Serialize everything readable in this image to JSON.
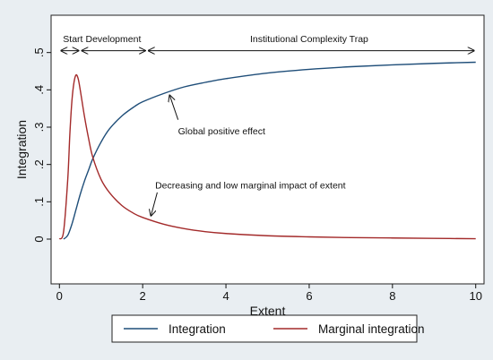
{
  "chart_data": {
    "type": "line",
    "xlabel": "Extent",
    "ylabel": "Integration",
    "xlim": [
      -0.2,
      10.2
    ],
    "ylim": [
      -0.12,
      0.6
    ],
    "xticks": [
      0,
      2,
      4,
      6,
      8,
      10
    ],
    "yticks": [
      0,
      0.1,
      0.2,
      0.3,
      0.4,
      0.5
    ],
    "ytick_labels": [
      "0",
      ".1",
      ".2",
      ".3",
      ".4",
      ".5"
    ],
    "grid": false,
    "legend_position": "bottom",
    "series": [
      {
        "name": "Integration",
        "color": "#1f4e79",
        "x": [
          0.1,
          0.2,
          0.3,
          0.4,
          0.5,
          0.6,
          0.7,
          0.8,
          1.0,
          1.2,
          1.5,
          1.8,
          2.0,
          2.5,
          3.0,
          3.5,
          4.0,
          5.0,
          6.0,
          7.0,
          8.0,
          9.0,
          10.0
        ],
        "y": [
          0.0,
          0.01,
          0.04,
          0.08,
          0.12,
          0.155,
          0.185,
          0.215,
          0.26,
          0.295,
          0.33,
          0.355,
          0.368,
          0.39,
          0.408,
          0.42,
          0.43,
          0.445,
          0.455,
          0.462,
          0.467,
          0.471,
          0.474
        ]
      },
      {
        "name": "Marginal integration",
        "color": "#a32a2a",
        "x": [
          0.0,
          0.1,
          0.2,
          0.25,
          0.3,
          0.35,
          0.4,
          0.45,
          0.5,
          0.6,
          0.7,
          0.8,
          1.0,
          1.2,
          1.5,
          1.8,
          2.0,
          2.5,
          3.0,
          3.5,
          4.0,
          5.0,
          6.0,
          7.0,
          8.0,
          9.0,
          10.0
        ],
        "y": [
          0.0,
          0.02,
          0.16,
          0.28,
          0.37,
          0.42,
          0.44,
          0.43,
          0.4,
          0.33,
          0.27,
          0.22,
          0.16,
          0.125,
          0.09,
          0.068,
          0.058,
          0.04,
          0.028,
          0.02,
          0.015,
          0.009,
          0.006,
          0.004,
          0.003,
          0.002,
          0.001
        ]
      }
    ],
    "phases": [
      {
        "label": "Start",
        "from": 0.0,
        "to": 0.5
      },
      {
        "label": "Development",
        "from": 0.5,
        "to": 2.1
      },
      {
        "label": "Institutional Complexity Trap",
        "from": 2.1,
        "to": 10.0
      }
    ],
    "phase_arrow_y": 0.505,
    "annotations": [
      {
        "text": "Global positive effect",
        "x": 2.85,
        "y": 0.29,
        "arrow_from": [
          2.85,
          0.32
        ],
        "arrow_to": [
          2.65,
          0.385
        ]
      },
      {
        "text": "Decreasing and low marginal impact of extent",
        "x": 2.3,
        "y": 0.145,
        "arrow_from": [
          2.35,
          0.125
        ],
        "arrow_to": [
          2.2,
          0.063
        ]
      }
    ]
  }
}
